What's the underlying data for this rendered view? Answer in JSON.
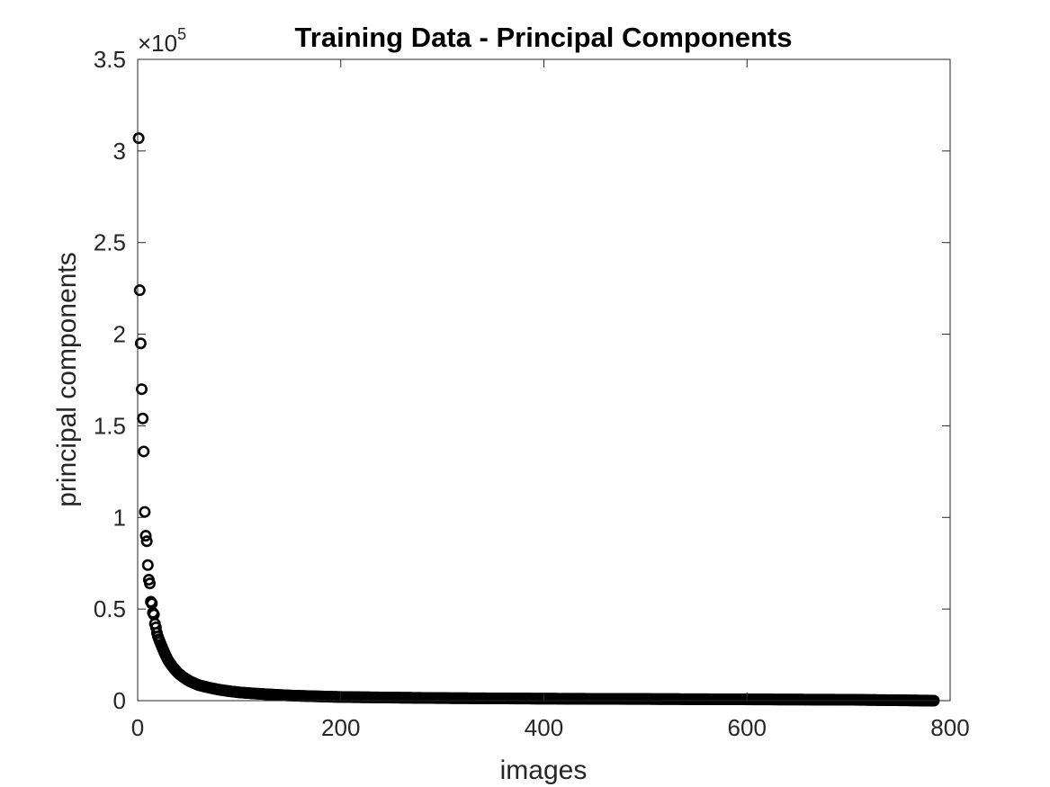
{
  "chart_data": {
    "type": "scatter",
    "title": "Training Data - Principal Components",
    "xlabel": "images",
    "ylabel": "principal components",
    "y_multiplier_base": "×10",
    "y_multiplier_exponent": "5",
    "xlim": [
      0,
      800
    ],
    "ylim": [
      0,
      350000
    ],
    "xticks": [
      0,
      200,
      400,
      600,
      800
    ],
    "xtick_labels": [
      "0",
      "200",
      "400",
      "600",
      "800"
    ],
    "yticks": [
      0,
      50000,
      100000,
      150000,
      200000,
      250000,
      300000,
      350000
    ],
    "ytick_labels": [
      "0",
      "0.5",
      "1",
      "1.5",
      "2",
      "2.5",
      "3",
      "3.5"
    ],
    "grid": false,
    "marker": "circle-open",
    "marker_color": "#000000",
    "n_points": 784,
    "points_shown_explicitly": [
      {
        "x": 1,
        "y": 307000
      },
      {
        "x": 2,
        "y": 224000
      },
      {
        "x": 3,
        "y": 195000
      },
      {
        "x": 4,
        "y": 170000
      },
      {
        "x": 5,
        "y": 154000
      },
      {
        "x": 6,
        "y": 136000
      },
      {
        "x": 7,
        "y": 103000
      },
      {
        "x": 8,
        "y": 90000
      },
      {
        "x": 9,
        "y": 87000
      },
      {
        "x": 10,
        "y": 74000
      },
      {
        "x": 11,
        "y": 66000
      },
      {
        "x": 12,
        "y": 64000
      },
      {
        "x": 13,
        "y": 54000
      },
      {
        "x": 14,
        "y": 53000
      },
      {
        "x": 15,
        "y": 48000
      },
      {
        "x": 16,
        "y": 47000
      },
      {
        "x": 17,
        "y": 42000
      },
      {
        "x": 18,
        "y": 40000
      },
      {
        "x": 19,
        "y": 37000
      },
      {
        "x": 20,
        "y": 35000
      }
    ],
    "tail_curve_samples": [
      {
        "x": 25,
        "y": 28000
      },
      {
        "x": 30,
        "y": 22000
      },
      {
        "x": 40,
        "y": 15000
      },
      {
        "x": 50,
        "y": 11000
      },
      {
        "x": 60,
        "y": 8500
      },
      {
        "x": 80,
        "y": 6000
      },
      {
        "x": 100,
        "y": 4500
      },
      {
        "x": 150,
        "y": 2800
      },
      {
        "x": 200,
        "y": 2000
      },
      {
        "x": 300,
        "y": 1400
      },
      {
        "x": 400,
        "y": 1100
      },
      {
        "x": 500,
        "y": 900
      },
      {
        "x": 600,
        "y": 700
      },
      {
        "x": 700,
        "y": 500
      },
      {
        "x": 784,
        "y": 0
      }
    ]
  }
}
